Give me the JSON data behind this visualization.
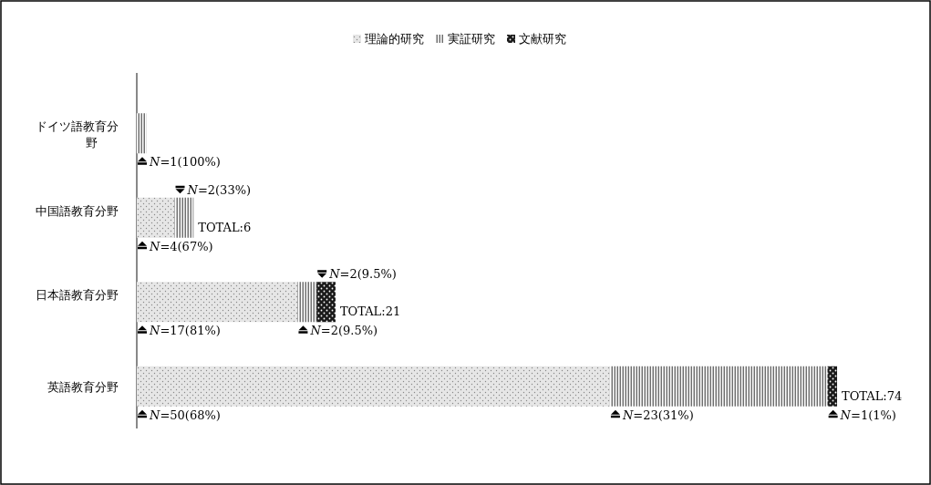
{
  "chart_data": {
    "type": "bar",
    "orientation": "horizontal",
    "stacked": true,
    "legend": "top",
    "categories": [
      "ドイツ語教育分野",
      "中国語教育分野",
      "日本語教育分野",
      "英語教育分野"
    ],
    "series": [
      {
        "name": "理論的研究",
        "color": "#e6e6e6",
        "values": [
          0,
          4,
          17,
          50
        ],
        "value_labels": [
          null,
          "N=4(67%)",
          "N=17(81%)",
          "N=50(68%)"
        ]
      },
      {
        "name": "実証研究",
        "color": "#707070",
        "values": [
          1,
          2,
          2,
          23
        ],
        "value_labels": [
          "N=1(100%)",
          "N=2(33%)",
          "N=2(9.5%)",
          "N=23(31%)"
        ]
      },
      {
        "name": "文献研究",
        "color": "#1a1a1a",
        "values": [
          0,
          0,
          2,
          1
        ],
        "value_labels": [
          null,
          null,
          "N=2(9.5%)",
          "N=1(1%)"
        ]
      }
    ],
    "totals": [
      null,
      "TOTAL:6",
      "TOTAL:21",
      "TOTAL:74"
    ]
  }
}
